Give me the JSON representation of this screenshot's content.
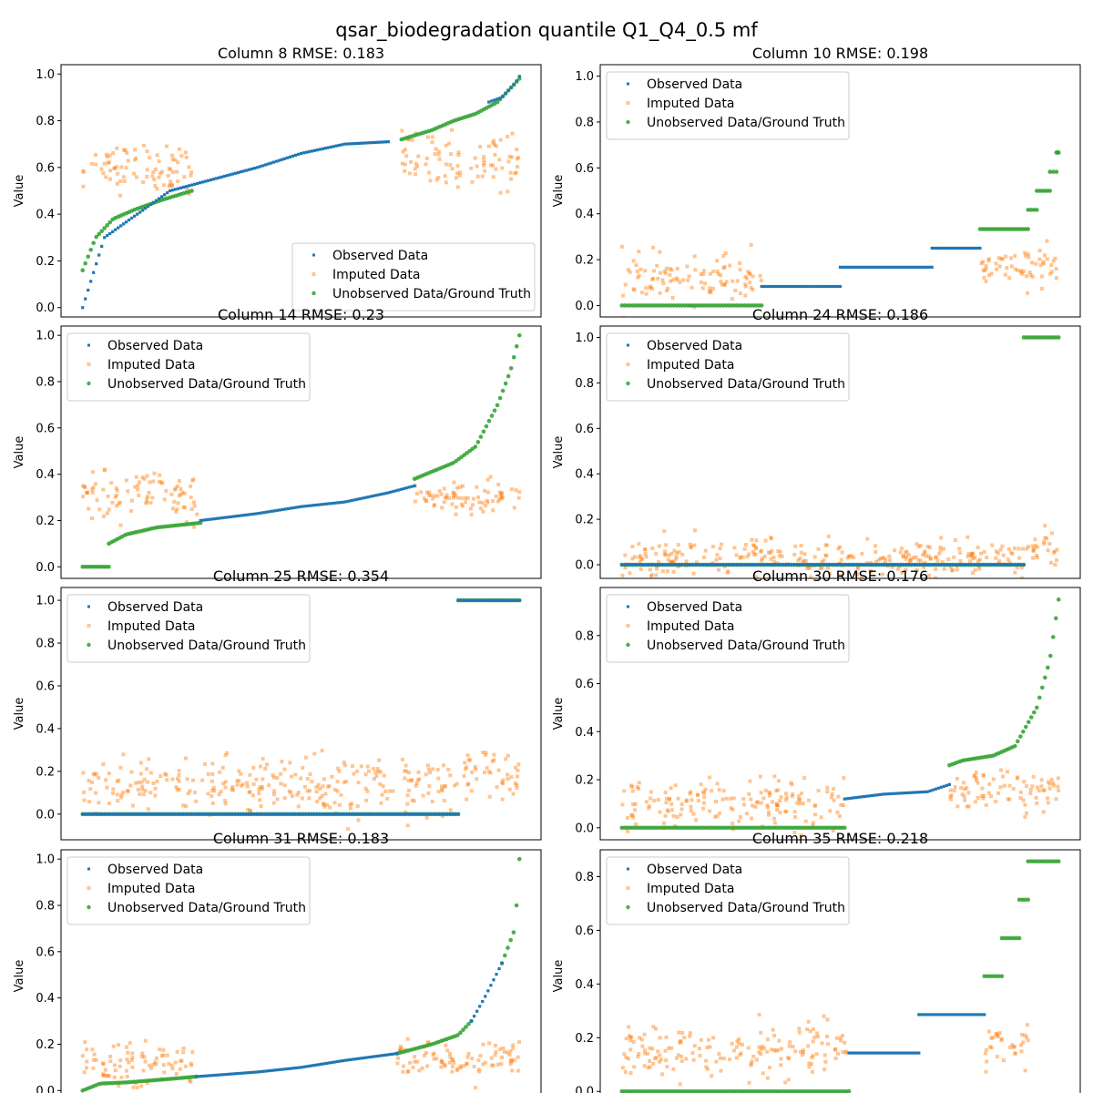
{
  "figure_title": "qsar_biodegradation quantile Q1_Q4_0.5 mf",
  "colors": {
    "observed": "#1f77b4",
    "imputed": "#ff7f0e",
    "unobserved": "#2ca02c"
  },
  "chart_data": [
    {
      "type": "scatter",
      "title": "Column 8 RMSE: 0.183",
      "ylabel": "Value",
      "xticks": false,
      "ylim": [
        -0.04,
        1.04
      ],
      "yticks": [
        "0.0",
        "0.2",
        "0.4",
        "0.6",
        "0.8",
        "1.0"
      ],
      "legend": {
        "position": "lower-right",
        "entries": [
          "Observed Data",
          "Imputed Data",
          "Unobserved Data/Ground Truth"
        ]
      },
      "series": [
        {
          "name": "Observed Data",
          "segments": [
            {
              "x": [
                0.0,
                0.05,
                0.2,
                0.3,
                0.4,
                0.5,
                0.6,
                0.7
              ],
              "y": [
                0.0,
                0.3,
                0.5,
                0.55,
                0.6,
                0.66,
                0.7,
                0.71
              ]
            },
            {
              "x": [
                0.93,
                0.96,
                0.99,
                1.0
              ],
              "y": [
                0.88,
                0.9,
                0.96,
                0.99
              ]
            }
          ]
        },
        {
          "name": "Imputed Data",
          "segments": [
            {
              "x": [
                0.0,
                0.25
              ],
              "y": [
                0.6,
                0.6
              ],
              "spread": 0.05
            },
            {
              "x": [
                0.73,
                1.0
              ],
              "y": [
                0.63,
                0.63
              ],
              "spread": 0.06
            }
          ]
        },
        {
          "name": "Unobserved Data/Ground Truth",
          "segments": [
            {
              "x": [
                0.0,
                0.03,
                0.07,
                0.12,
                0.18,
                0.25
              ],
              "y": [
                0.16,
                0.3,
                0.38,
                0.42,
                0.46,
                0.5
              ]
            },
            {
              "x": [
                0.73,
                0.8,
                0.85,
                0.9,
                0.95,
                1.0
              ],
              "y": [
                0.72,
                0.76,
                0.8,
                0.83,
                0.88,
                0.98
              ]
            }
          ]
        }
      ]
    },
    {
      "type": "scatter",
      "title": "Column 10 RMSE: 0.198",
      "ylabel": "Value",
      "xticks": false,
      "ylim": [
        -0.05,
        1.05
      ],
      "yticks": [
        "0.0",
        "0.2",
        "0.4",
        "0.6",
        "0.8",
        "1.0"
      ],
      "legend": {
        "position": "top-left",
        "entries": [
          "Observed Data",
          "Imputed Data",
          "Unobserved Data/Ground Truth"
        ]
      },
      "series": [
        {
          "name": "Observed Data",
          "segments": [
            {
              "x": [
                0.32,
                0.5
              ],
              "y": [
                0.083,
                0.083
              ]
            },
            {
              "x": [
                0.5,
                0.71
              ],
              "y": [
                0.167,
                0.167
              ]
            },
            {
              "x": [
                0.71,
                0.82
              ],
              "y": [
                0.25,
                0.25
              ]
            }
          ]
        },
        {
          "name": "Imputed Data",
          "segments": [
            {
              "x": [
                0.0,
                0.32
              ],
              "y": [
                0.12,
                0.12
              ],
              "spread": 0.05
            },
            {
              "x": [
                0.82,
                1.0
              ],
              "y": [
                0.17,
                0.17
              ],
              "spread": 0.04
            }
          ]
        },
        {
          "name": "Unobserved Data/Ground Truth",
          "segments": [
            {
              "x": [
                0.0,
                0.32
              ],
              "y": [
                0.0,
                0.0
              ]
            },
            {
              "x": [
                0.82,
                0.93
              ],
              "y": [
                0.333,
                0.333
              ]
            },
            {
              "x": [
                0.93,
                0.95
              ],
              "y": [
                0.417,
                0.417
              ]
            },
            {
              "x": [
                0.95,
                0.98
              ],
              "y": [
                0.5,
                0.5
              ]
            },
            {
              "x": [
                0.98,
                0.995
              ],
              "y": [
                0.583,
                0.583
              ]
            },
            {
              "x": [
                0.995,
                1.0
              ],
              "y": [
                0.667,
                0.667
              ]
            }
          ]
        }
      ]
    },
    {
      "type": "scatter",
      "title": "Column 14 RMSE: 0.23",
      "ylabel": "Value",
      "xticks": false,
      "ylim": [
        -0.05,
        1.04
      ],
      "yticks": [
        "0.0",
        "0.2",
        "0.4",
        "0.6",
        "0.8",
        "1.0"
      ],
      "legend": {
        "position": "top-left",
        "entries": [
          "Observed Data",
          "Imputed Data",
          "Unobserved Data/Ground Truth"
        ]
      },
      "series": [
        {
          "name": "Observed Data",
          "segments": [
            {
              "x": [
                0.27,
                0.4,
                0.5,
                0.6,
                0.7,
                0.76
              ],
              "y": [
                0.2,
                0.23,
                0.26,
                0.28,
                0.32,
                0.35
              ]
            }
          ]
        },
        {
          "name": "Imputed Data",
          "segments": [
            {
              "x": [
                0.0,
                0.27
              ],
              "y": [
                0.3,
                0.3
              ],
              "spread": 0.05
            },
            {
              "x": [
                0.76,
                1.0
              ],
              "y": [
                0.3,
                0.3
              ],
              "spread": 0.04
            }
          ]
        },
        {
          "name": "Unobserved Data/Ground Truth",
          "segments": [
            {
              "x": [
                0.0,
                0.06
              ],
              "y": [
                0.0,
                0.0
              ]
            },
            {
              "x": [
                0.06,
                0.1,
                0.17,
                0.27
              ],
              "y": [
                0.1,
                0.14,
                0.17,
                0.19
              ]
            },
            {
              "x": [
                0.76,
                0.85,
                0.9,
                0.95,
                0.98,
                1.0
              ],
              "y": [
                0.38,
                0.45,
                0.52,
                0.7,
                0.85,
                1.0
              ]
            }
          ]
        }
      ]
    },
    {
      "type": "scatter",
      "title": "Column 24 RMSE: 0.186",
      "ylabel": "Value",
      "xticks": false,
      "ylim": [
        -0.06,
        1.05
      ],
      "yticks": [
        "0.0",
        "0.2",
        "0.4",
        "0.6",
        "0.8",
        "1.0"
      ],
      "legend": {
        "position": "top-left",
        "entries": [
          "Observed Data",
          "Imputed Data",
          "Unobserved Data/Ground Truth"
        ]
      },
      "series": [
        {
          "name": "Observed Data",
          "segments": [
            {
              "x": [
                0.0,
                0.92
              ],
              "y": [
                0.0,
                0.0
              ]
            }
          ]
        },
        {
          "name": "Imputed Data",
          "segments": [
            {
              "x": [
                0.0,
                0.92
              ],
              "y": [
                0.025,
                0.025
              ],
              "spread": 0.04
            },
            {
              "x": [
                0.92,
                1.0
              ],
              "y": [
                0.07,
                0.07
              ],
              "spread": 0.04
            }
          ]
        },
        {
          "name": "Unobserved Data/Ground Truth",
          "segments": [
            {
              "x": [
                0.0,
                0.92
              ],
              "y": [
                0.0,
                0.0
              ]
            },
            {
              "x": [
                0.92,
                1.0
              ],
              "y": [
                1.0,
                1.0
              ]
            }
          ]
        }
      ]
    },
    {
      "type": "scatter",
      "title": "Column 25 RMSE: 0.354",
      "ylabel": "Value",
      "xticks": false,
      "ylim": [
        -0.12,
        1.06
      ],
      "yticks": [
        "0.0",
        "0.2",
        "0.4",
        "0.6",
        "0.8",
        "1.0"
      ],
      "legend": {
        "position": "top-left",
        "entries": [
          "Observed Data",
          "Imputed Data",
          "Unobserved Data/Ground Truth"
        ]
      },
      "series": [
        {
          "name": "Observed Data",
          "segments": [
            {
              "x": [
                0.0,
                0.86
              ],
              "y": [
                0.0,
                0.0
              ]
            },
            {
              "x": [
                0.86,
                1.0
              ],
              "y": [
                1.0,
                1.0
              ]
            }
          ]
        },
        {
          "name": "Imputed Data",
          "segments": [
            {
              "x": [
                0.0,
                0.86
              ],
              "y": [
                0.13,
                0.13
              ],
              "spread": 0.07
            },
            {
              "x": [
                0.86,
                1.0
              ],
              "y": [
                0.19,
                0.19
              ],
              "spread": 0.06
            }
          ]
        },
        {
          "name": "Unobserved Data/Ground Truth",
          "segments": [
            {
              "x": [
                0.0,
                0.86
              ],
              "y": [
                0.0,
                0.0
              ]
            },
            {
              "x": [
                0.86,
                1.0
              ],
              "y": [
                1.0,
                1.0
              ]
            }
          ]
        }
      ]
    },
    {
      "type": "scatter",
      "title": "Column 30 RMSE: 0.176",
      "ylabel": "Value",
      "xticks": false,
      "ylim": [
        -0.05,
        1.0
      ],
      "yticks": [
        "0.0",
        "0.2",
        "0.4",
        "0.6",
        "0.8"
      ],
      "legend": {
        "position": "top-left",
        "entries": [
          "Observed Data",
          "Imputed Data",
          "Unobserved Data/Ground Truth"
        ]
      },
      "series": [
        {
          "name": "Observed Data",
          "segments": [
            {
              "x": [
                0.51,
                0.6,
                0.7,
                0.75
              ],
              "y": [
                0.12,
                0.14,
                0.15,
                0.18
              ]
            }
          ]
        },
        {
          "name": "Imputed Data",
          "segments": [
            {
              "x": [
                0.0,
                0.51
              ],
              "y": [
                0.1,
                0.1
              ],
              "spread": 0.05
            },
            {
              "x": [
                0.75,
                1.0
              ],
              "y": [
                0.15,
                0.15
              ],
              "spread": 0.04
            }
          ]
        },
        {
          "name": "Unobserved Data/Ground Truth",
          "segments": [
            {
              "x": [
                0.0,
                0.51
              ],
              "y": [
                0.0,
                0.0
              ]
            },
            {
              "x": [
                0.75,
                0.78,
                0.85,
                0.9,
                0.95,
                0.98,
                1.0
              ],
              "y": [
                0.26,
                0.28,
                0.3,
                0.34,
                0.5,
                0.7,
                0.95
              ]
            }
          ]
        }
      ]
    },
    {
      "type": "scatter",
      "title": "Column 31 RMSE: 0.183",
      "ylabel": "Value",
      "xticks": false,
      "ylim": [
        -0.05,
        1.04
      ],
      "yticks": [
        "0.0",
        "0.2",
        "0.4",
        "0.6",
        "0.8",
        "1.0"
      ],
      "legend": {
        "position": "top-left",
        "entries": [
          "Observed Data",
          "Imputed Data",
          "Unobserved Data/Ground Truth"
        ]
      },
      "series": [
        {
          "name": "Observed Data",
          "segments": [
            {
              "x": [
                0.26,
                0.4,
                0.5,
                0.6,
                0.72
              ],
              "y": [
                0.06,
                0.08,
                0.1,
                0.13,
                0.16
              ]
            },
            {
              "x": [
                0.89,
                0.92,
                0.96
              ],
              "y": [
                0.3,
                0.4,
                0.55
              ]
            }
          ]
        },
        {
          "name": "Imputed Data",
          "segments": [
            {
              "x": [
                0.0,
                0.26
              ],
              "y": [
                0.12,
                0.12
              ],
              "spread": 0.05
            },
            {
              "x": [
                0.72,
                1.0
              ],
              "y": [
                0.13,
                0.13
              ],
              "spread": 0.04
            }
          ]
        },
        {
          "name": "Unobserved Data/Ground Truth",
          "segments": [
            {
              "x": [
                0.0,
                0.04,
                0.1,
                0.2,
                0.26
              ],
              "y": [
                0.0,
                0.03,
                0.035,
                0.05,
                0.06
              ]
            },
            {
              "x": [
                0.72,
                0.8,
                0.86,
                0.89
              ],
              "y": [
                0.16,
                0.2,
                0.24,
                0.3
              ]
            },
            {
              "x": [
                0.96,
                0.99,
                1.0
              ],
              "y": [
                0.55,
                0.7,
                1.0
              ]
            }
          ]
        }
      ]
    },
    {
      "type": "scatter",
      "title": "Column 35 RMSE: 0.218",
      "ylabel": "Value",
      "xticks": false,
      "ylim": [
        -0.04,
        0.9
      ],
      "yticks": [
        "0.0",
        "0.2",
        "0.4",
        "0.6",
        "0.8"
      ],
      "legend": {
        "position": "top-left",
        "entries": [
          "Observed Data",
          "Imputed Data",
          "Unobserved Data/Ground Truth"
        ]
      },
      "series": [
        {
          "name": "Observed Data",
          "segments": [
            {
              "x": [
                0.52,
                0.68
              ],
              "y": [
                0.143,
                0.143
              ]
            },
            {
              "x": [
                0.68,
                0.83
              ],
              "y": [
                0.286,
                0.286
              ]
            }
          ]
        },
        {
          "name": "Imputed Data",
          "segments": [
            {
              "x": [
                0.0,
                0.52
              ],
              "y": [
                0.15,
                0.15
              ],
              "spread": 0.05
            },
            {
              "x": [
                0.83,
                0.93
              ],
              "y": [
                0.17,
                0.17
              ],
              "spread": 0.04
            }
          ]
        },
        {
          "name": "Unobserved Data/Ground Truth",
          "segments": [
            {
              "x": [
                0.0,
                0.52
              ],
              "y": [
                0.0,
                0.0
              ]
            },
            {
              "x": [
                0.83,
                0.87
              ],
              "y": [
                0.429,
                0.429
              ]
            },
            {
              "x": [
                0.87,
                0.91
              ],
              "y": [
                0.571,
                0.571
              ]
            },
            {
              "x": [
                0.91,
                0.93
              ],
              "y": [
                0.714,
                0.714
              ]
            },
            {
              "x": [
                0.93,
                1.0
              ],
              "y": [
                0.857,
                0.857
              ]
            }
          ]
        }
      ]
    }
  ]
}
